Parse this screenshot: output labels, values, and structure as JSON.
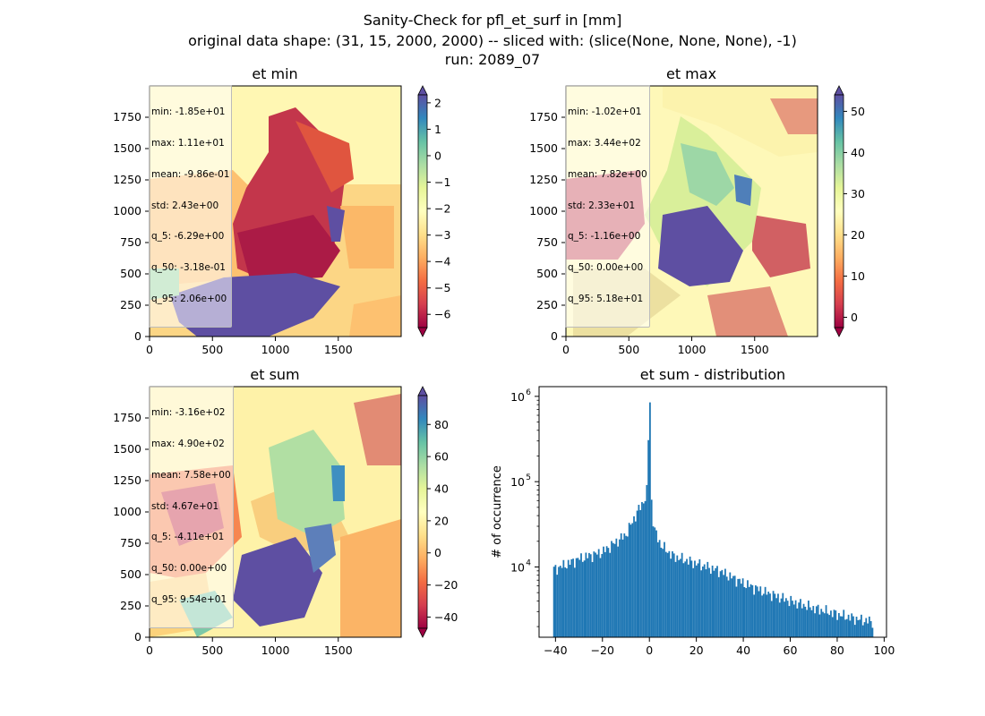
{
  "figure": {
    "title_line1": "Sanity-Check for pfl_et_surf in [mm]",
    "title_line2": "original data shape: (31, 15, 2000, 2000) -- sliced with: (slice(None, None, None), -1)",
    "title_line3": "run: 2089_07"
  },
  "chart_data": [
    {
      "type": "heatmap",
      "title": "et min",
      "colormap": "Spectral",
      "x_ticks": [
        "0",
        "500",
        "1000",
        "1500"
      ],
      "x_tick_values": [
        0,
        500,
        1000,
        1500
      ],
      "y_ticks": [
        "0",
        "250",
        "500",
        "750",
        "1000",
        "1250",
        "1500",
        "1750"
      ],
      "y_tick_values": [
        0,
        250,
        500,
        750,
        1000,
        1250,
        1500,
        1750
      ],
      "xlim": [
        0,
        2000
      ],
      "ylim": [
        0,
        2000
      ],
      "colorbar": {
        "range": [
          -6.5,
          2.3
        ],
        "extend": "both",
        "ticks": [
          "2",
          "1",
          "0",
          "−1",
          "−2",
          "−3",
          "−4",
          "−5",
          "−6"
        ],
        "tick_values": [
          2,
          1,
          0,
          -1,
          -2,
          -3,
          -4,
          -5,
          -6
        ]
      },
      "stats": [
        "min: -1.85e+01",
        "max: 1.11e+01",
        "mean: -9.86e-01",
        "std: 2.43e+00",
        "q_5: -6.29e+00",
        "q_50: -3.18e-01",
        "q_95: 2.06e+00"
      ]
    },
    {
      "type": "heatmap",
      "title": "et max",
      "colormap": "Spectral",
      "x_ticks": [
        "0",
        "500",
        "1000",
        "1500"
      ],
      "x_tick_values": [
        0,
        500,
        1000,
        1500
      ],
      "y_ticks": [
        "0",
        "250",
        "500",
        "750",
        "1000",
        "1250",
        "1500",
        "1750"
      ],
      "y_tick_values": [
        0,
        250,
        500,
        750,
        1000,
        1250,
        1500,
        1750
      ],
      "xlim": [
        0,
        2000
      ],
      "ylim": [
        0,
        2000
      ],
      "colorbar": {
        "range": [
          -2.5,
          54
        ],
        "extend": "both",
        "ticks": [
          "50",
          "40",
          "30",
          "20",
          "10",
          "0"
        ],
        "tick_values": [
          50,
          40,
          30,
          20,
          10,
          0
        ]
      },
      "stats": [
        "min: -1.02e+01",
        "max: 3.44e+02",
        "mean: 7.82e+00",
        "std: 2.33e+01",
        "q_5: -1.16e+00",
        "q_50: 0.00e+00",
        "q_95: 5.18e+01"
      ]
    },
    {
      "type": "heatmap",
      "title": "et sum",
      "colormap": "Spectral",
      "x_ticks": [
        "0",
        "500",
        "1000",
        "1500"
      ],
      "x_tick_values": [
        0,
        500,
        1000,
        1500
      ],
      "y_ticks": [
        "0",
        "250",
        "500",
        "750",
        "1000",
        "1250",
        "1500",
        "1750"
      ],
      "y_tick_values": [
        0,
        250,
        500,
        750,
        1000,
        1250,
        1500,
        1750
      ],
      "xlim": [
        0,
        2000
      ],
      "ylim": [
        0,
        2000
      ],
      "colorbar": {
        "range": [
          -47,
          98
        ],
        "extend": "both",
        "ticks": [
          "80",
          "60",
          "40",
          "20",
          "0",
          "−20",
          "−40"
        ],
        "tick_values": [
          80,
          60,
          40,
          20,
          0,
          -20,
          -40
        ]
      },
      "stats": [
        "min: -3.16e+02",
        "max: 4.90e+02",
        "mean: 7.58e+00",
        "std: 4.67e+01",
        "q_5: -4.11e+01",
        "q_50: 0.00e+00",
        "q_95: 9.54e+01"
      ]
    },
    {
      "type": "bar",
      "title": "et sum - distribution",
      "ylabel": "# of occurrence",
      "yscale": "log",
      "xlim": [
        -47,
        101
      ],
      "ylim": [
        1500,
        1300000
      ],
      "x_ticks": [
        "−40",
        "−20",
        "0",
        "20",
        "40",
        "60",
        "80",
        "100"
      ],
      "x_tick_values": [
        -40,
        -20,
        0,
        20,
        40,
        60,
        80,
        100
      ],
      "y_ticks": [
        "10",
        "10",
        "10"
      ],
      "y_tick_exponents": [
        "4",
        "5",
        "6"
      ],
      "y_tick_values": [
        10000,
        100000,
        1000000
      ],
      "color": "#1f77b4",
      "bin_range": [
        -41,
        95.4
      ],
      "bins": 200,
      "bin_centers_sample": [
        -40,
        -30,
        -20,
        -10,
        -5,
        -2,
        -1,
        0,
        1,
        2,
        5,
        10,
        20,
        30,
        40,
        50,
        60,
        70,
        80,
        90,
        95
      ],
      "counts_sample": [
        9500,
        12500,
        15000,
        24000,
        45000,
        62000,
        80000,
        850000,
        50000,
        28000,
        18000,
        13500,
        11000,
        9000,
        6500,
        5000,
        4000,
        3300,
        2800,
        2400,
        2300
      ]
    }
  ]
}
